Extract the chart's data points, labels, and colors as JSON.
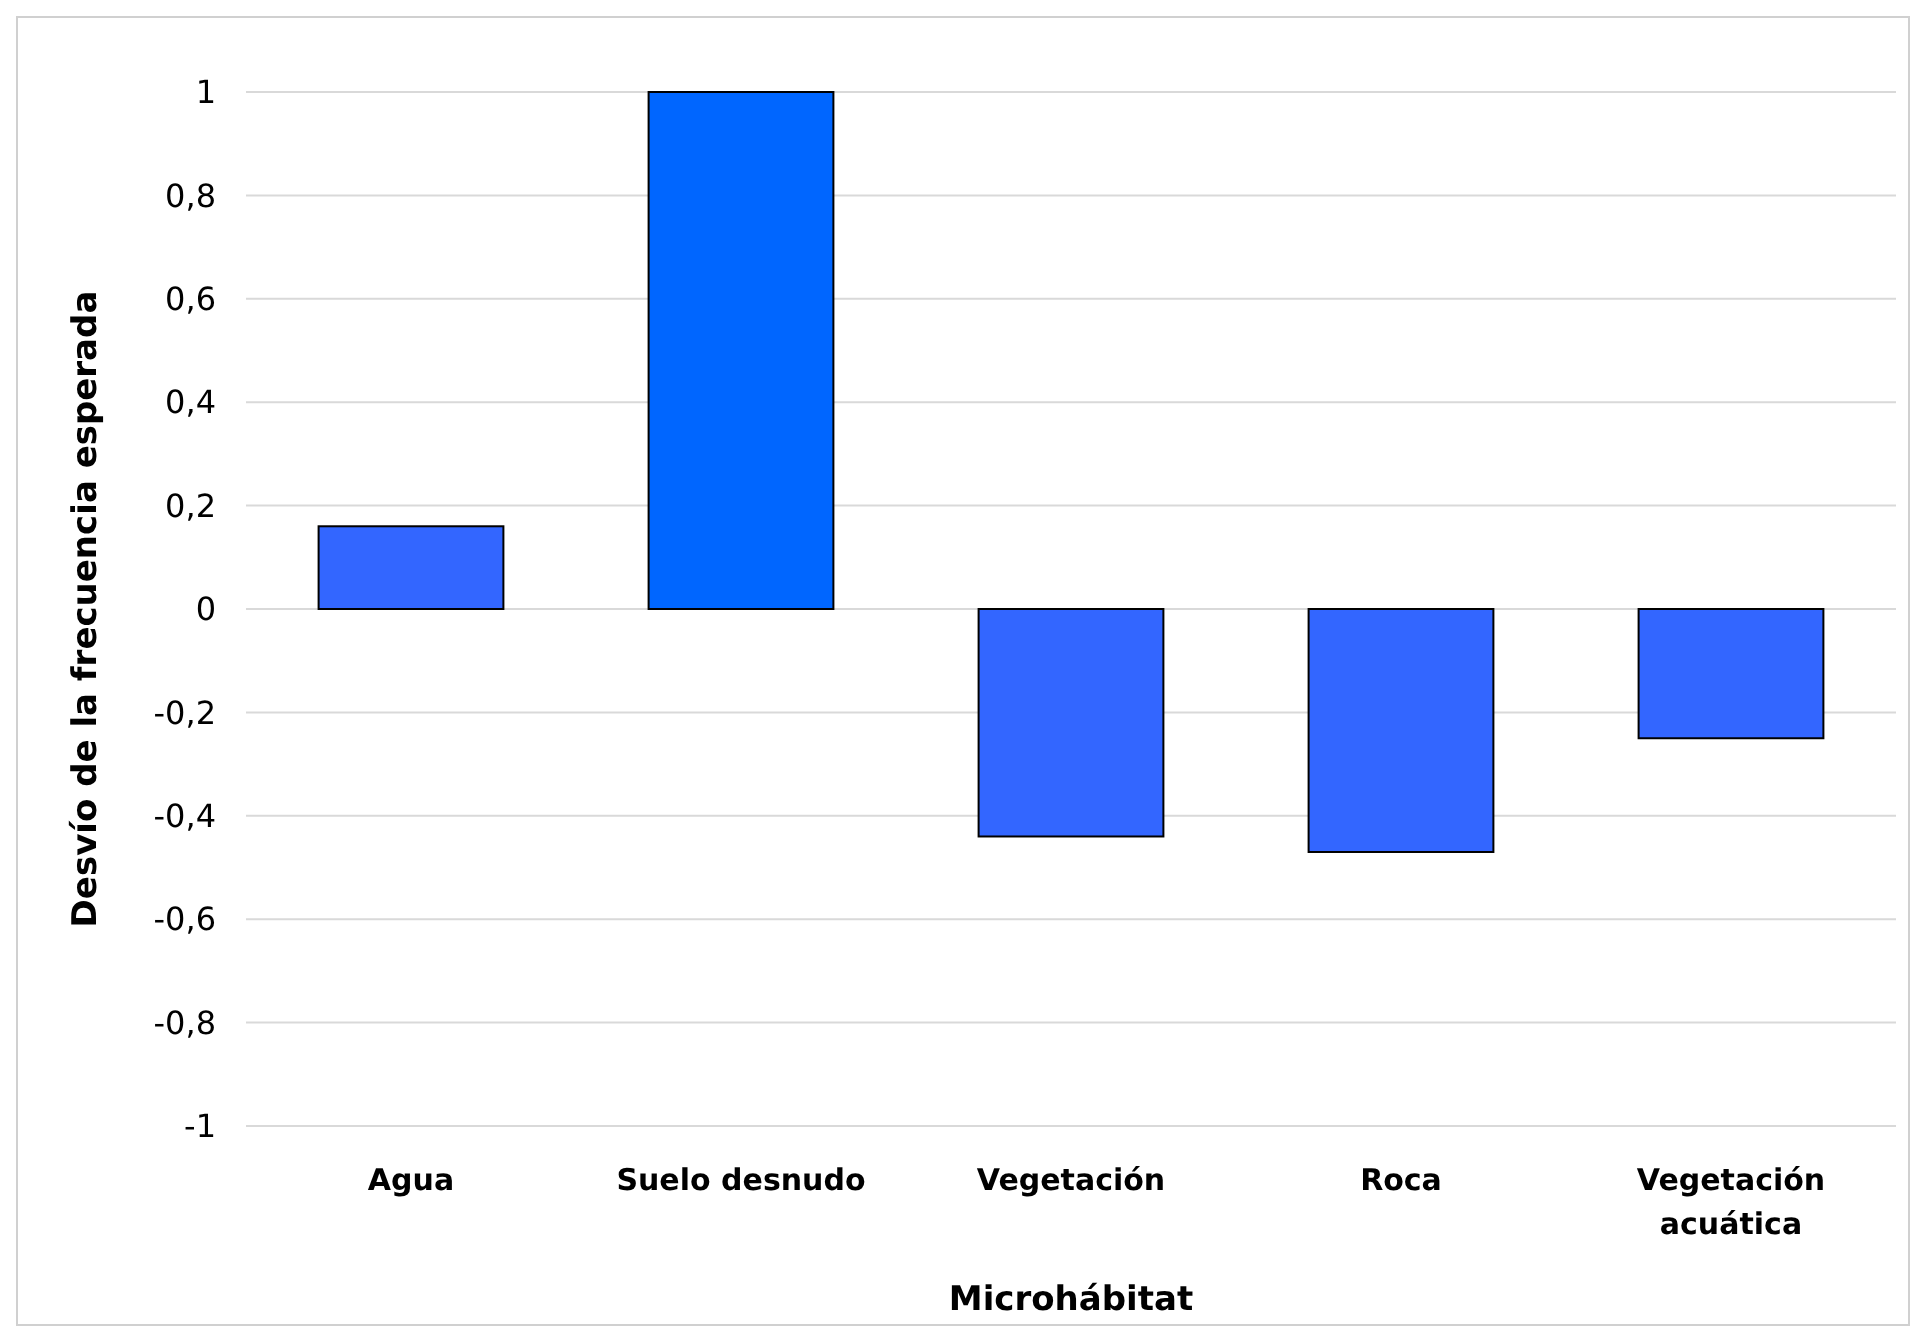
{
  "chart_data": {
    "type": "bar",
    "xlabel": "Microhábitat",
    "ylabel": "Desvío de la frecuencia esperada",
    "categories": [
      "Agua",
      "Suelo desnudo",
      "Vegetación",
      "Roca",
      "Vegetación acuática"
    ],
    "values": [
      0.16,
      1,
      -0.44,
      -0.47,
      -0.25
    ],
    "colors": [
      "#3366ff",
      "#0066ff",
      "#3366ff",
      "#3366ff",
      "#3366ff"
    ],
    "ylim": [
      -1,
      1
    ],
    "yticks": [
      -1,
      {
        "value": -0.8,
        "label": "-0,8"
      },
      {
        "value": -0.6,
        "label": "-0,6"
      },
      {
        "value": -0.4,
        "label": "-0,4"
      },
      {
        "value": -0.2,
        "label": "-0,2"
      },
      0,
      {
        "value": 0.2,
        "label": "0,2"
      },
      {
        "value": 0.4,
        "label": "0,4"
      },
      {
        "value": 0.6,
        "label": "0,6"
      },
      {
        "value": 0.8,
        "label": "0,8"
      },
      1
    ],
    "grid": "y"
  }
}
